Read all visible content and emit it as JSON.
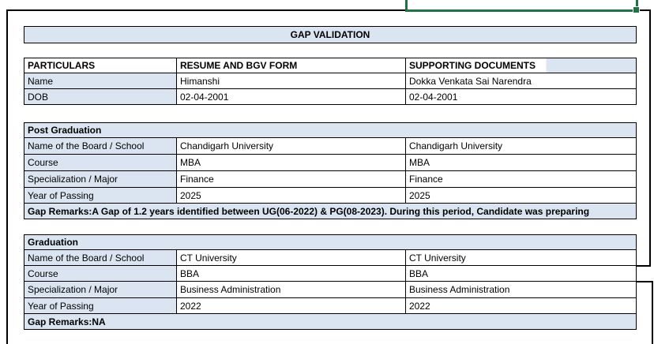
{
  "page": {
    "title": "GAP VALIDATION"
  },
  "colors": {
    "cell_fill_blue": "#dbe5f1",
    "selection_green": "#217346",
    "border_black": "#000000"
  },
  "selection": {
    "handle_icon": "fill-handle-icon"
  },
  "particulars": {
    "headers": [
      "PARTICULARS",
      "RESUME AND BGV FORM",
      "SUPPORTING DOCUMENTS"
    ],
    "rows": [
      {
        "label": "Name",
        "resume": "Himanshi",
        "supporting": "Dokka Venkata Sai Narendra"
      },
      {
        "label": "DOB",
        "resume": "02-04-2001",
        "supporting": "02-04-2001"
      }
    ]
  },
  "sections": [
    {
      "title": "Post Graduation",
      "rows": [
        {
          "label": "Name of the Board / School",
          "resume": "Chandigarh University",
          "supporting": "Chandigarh University"
        },
        {
          "label": "Course",
          "resume": "MBA",
          "supporting": "MBA"
        },
        {
          "label": "Specialization / Major",
          "resume": "Finance",
          "supporting": "Finance"
        },
        {
          "label": "Year of Passing",
          "resume": "2025",
          "supporting": "2025"
        }
      ],
      "gap_remarks": "Gap Remarks:A Gap of 1.2 years identified between UG(06-2022) & PG(08-2023). During this period, Candidate was preparing"
    },
    {
      "title": "Graduation",
      "rows": [
        {
          "label": "Name of the Board / School",
          "resume": "CT University",
          "supporting": "CT University"
        },
        {
          "label": "Course",
          "resume": "BBA",
          "supporting": "BBA"
        },
        {
          "label": "Specialization / Major",
          "resume": "Business Administration",
          "supporting": "Business Administration"
        },
        {
          "label": "Year of Passing",
          "resume": "2022",
          "supporting": "2022"
        }
      ],
      "gap_remarks": "Gap Remarks:NA"
    }
  ]
}
